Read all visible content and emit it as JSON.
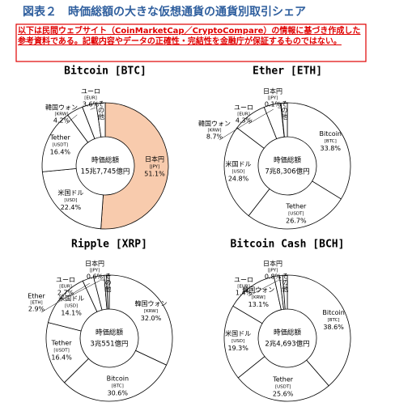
{
  "title": "図表２　時価総額の大きな仮想通貨の通貨別取引シェア",
  "note": "以下は民間ウェブサイト（CoinMarketCap／CryptoCompare）の情報に基づき作成した参考資料である。記載内容やデータの正確性・完結性を金融庁が保証するものではない。",
  "chart_data": [
    {
      "type": "pie",
      "title": "Bitcoin [BTC]",
      "center_label": "時価総額",
      "total": "15兆7,745億円",
      "categories": [
        "日本円",
        "米国ドル",
        "Tether",
        "韓国ウォン",
        "ユーロ",
        "その他"
      ],
      "codes": [
        "[JPY]",
        "[USD]",
        "[USDT]",
        "[KRW]",
        "[EUR]",
        null
      ],
      "values": [
        51.1,
        22.4,
        16.4,
        4.2,
        3.6,
        2.3
      ],
      "value_labels": [
        "51.1%",
        "22.4%",
        "16.4%",
        "4.2%",
        "3.6%",
        null
      ],
      "colors": [
        "#f8cbad",
        "#ffffff",
        "#ffffff",
        "#ffffff",
        "#ffffff",
        "#ffffff"
      ]
    },
    {
      "type": "pie",
      "title": "Ether [ETH]",
      "center_label": "時価総額",
      "total": "7兆8,306億円",
      "categories": [
        "Bitcoin",
        "Tether",
        "米国ドル",
        "韓国ウォン",
        "ユーロ",
        "日本円",
        "その他"
      ],
      "codes": [
        "[BTC]",
        "[USDT]",
        "[USD]",
        "[KRW]",
        "[EUR]",
        "[JPY]",
        null
      ],
      "values": [
        33.8,
        26.7,
        24.8,
        8.7,
        4.3,
        0.1,
        1.6
      ],
      "value_labels": [
        "33.8%",
        "26.7%",
        "24.8%",
        "8.7%",
        "4.3%",
        "0.1%",
        null
      ],
      "colors": [
        "#ffffff",
        "#ffffff",
        "#ffffff",
        "#ffffff",
        "#ffffff",
        "#ffffff",
        "#ffffff"
      ]
    },
    {
      "type": "pie",
      "title": "Ripple [XRP]",
      "center_label": "時価総額",
      "total": "3兆551億円",
      "categories": [
        "韓国ウォン",
        "Bitcoin",
        "Tether",
        "米国ドル",
        "Ether",
        "ユーロ",
        "日本円",
        "その他"
      ],
      "codes": [
        "[KRW]",
        "[BTC]",
        "[USDT]",
        "[USD]",
        "[ETH]",
        "[EUR]",
        "[JPY]",
        null
      ],
      "values": [
        32.0,
        30.6,
        16.4,
        14.1,
        2.9,
        2.7,
        0.6,
        0.7
      ],
      "value_labels": [
        "32.0%",
        "30.6%",
        "16.4%",
        "14.1%",
        "2.9%",
        "2.7%",
        "0.6%",
        null
      ],
      "colors": [
        "#ffffff",
        "#ffffff",
        "#ffffff",
        "#ffffff",
        "#ffffff",
        "#ffffff",
        "#ffffff",
        "#ffffff"
      ]
    },
    {
      "type": "pie",
      "title": "Bitcoin Cash [BCH]",
      "center_label": "時価総額",
      "total": "2兆4,693億円",
      "categories": [
        "Bitcoin",
        "Tether",
        "米国ドル",
        "韓国ウォン",
        "ユーロ",
        "日本円",
        "その他"
      ],
      "codes": [
        "[BTC]",
        "[USDT]",
        "[USD]",
        "[KRW]",
        "[EUR]",
        "[JPY]",
        null
      ],
      "values": [
        38.6,
        25.6,
        19.3,
        13.1,
        1.4,
        0.8,
        1.2
      ],
      "value_labels": [
        "38.6%",
        "25.6%",
        "19.3%",
        "13.1%",
        "1.4%",
        "0.8%",
        null
      ],
      "colors": [
        "#ffffff",
        "#ffffff",
        "#ffffff",
        "#ffffff",
        "#ffffff",
        "#ffffff",
        "#ffffff"
      ]
    }
  ]
}
